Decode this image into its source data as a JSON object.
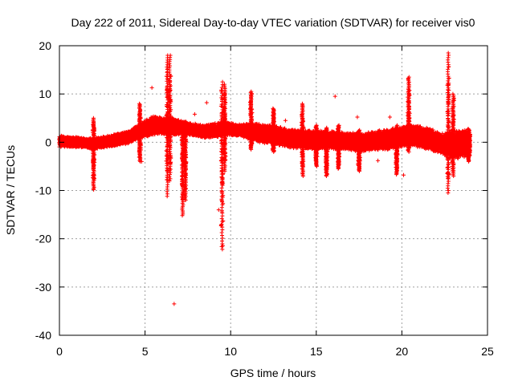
{
  "chart_data": {
    "type": "scatter",
    "title": "Day 222 of 2011, Sidereal Day-to-day VTEC variation (SDTVAR) for receiver vis0",
    "xlabel": "GPS time / hours",
    "ylabel": "SDTVAR / TECUs",
    "xlim": [
      0,
      25
    ],
    "ylim": [
      -40,
      20
    ],
    "xticks": [
      0,
      5,
      10,
      15,
      20,
      25
    ],
    "yticks": [
      -40,
      -30,
      -20,
      -10,
      0,
      10,
      20
    ],
    "grid": true,
    "marker": "+",
    "color": "#ff0000",
    "series": [
      {
        "name": "SDTVAR",
        "band_center": [
          [
            0,
            0.2
          ],
          [
            1,
            0.0
          ],
          [
            2,
            -0.3
          ],
          [
            3,
            0.3
          ],
          [
            4,
            1.0
          ],
          [
            4.8,
            2.5
          ],
          [
            5.5,
            3.5
          ],
          [
            6.5,
            3.3
          ],
          [
            7.5,
            2.8
          ],
          [
            8.5,
            2.2
          ],
          [
            9,
            2.5
          ],
          [
            9.8,
            2.8
          ],
          [
            10.5,
            2.5
          ],
          [
            11.5,
            2.0
          ],
          [
            12.5,
            1.5
          ],
          [
            13.5,
            0.8
          ],
          [
            14.5,
            0.5
          ],
          [
            15.5,
            0.5
          ],
          [
            16.5,
            0.3
          ],
          [
            17.5,
            0.0
          ],
          [
            18.5,
            0.3
          ],
          [
            19.5,
            0.8
          ],
          [
            20.5,
            1.5
          ],
          [
            21.5,
            0.8
          ],
          [
            22.5,
            -0.5
          ],
          [
            23.0,
            -0.5
          ],
          [
            24,
            -0.3
          ]
        ],
        "band_halfwidth": [
          [
            0,
            1.2
          ],
          [
            1.5,
            1.0
          ],
          [
            2,
            1.2
          ],
          [
            3,
            1.2
          ],
          [
            4.5,
            1.5
          ],
          [
            5.5,
            2.0
          ],
          [
            6.5,
            1.8
          ],
          [
            7.5,
            1.4
          ],
          [
            8.5,
            1.4
          ],
          [
            9.5,
            1.6
          ],
          [
            10.5,
            1.2
          ],
          [
            11.5,
            2.0
          ],
          [
            12.5,
            2.0
          ],
          [
            13.5,
            2.0
          ],
          [
            14.5,
            2.0
          ],
          [
            15.5,
            2.0
          ],
          [
            16.5,
            1.8
          ],
          [
            17.5,
            2.0
          ],
          [
            18.5,
            2.0
          ],
          [
            19.5,
            2.3
          ],
          [
            20.5,
            2.3
          ],
          [
            21.5,
            2.3
          ],
          [
            22.5,
            2.3
          ],
          [
            22.8,
            3.2
          ],
          [
            24,
            2.8
          ]
        ],
        "spikes": [
          {
            "x": 2.0,
            "min": -9.8,
            "max": 5.0
          },
          {
            "x": 4.7,
            "min": -4.0,
            "max": 8.0
          },
          {
            "x": 6.3,
            "min": -11.2,
            "max": 18.0
          },
          {
            "x": 6.45,
            "min": -8.0,
            "max": 18.0
          },
          {
            "x": 7.2,
            "min": -15.2,
            "max": 4.0
          },
          {
            "x": 7.35,
            "min": -12.0,
            "max": 3.5
          },
          {
            "x": 9.5,
            "min": -22.2,
            "max": 12.5
          },
          {
            "x": 9.65,
            "min": -6.0,
            "max": 12.0
          },
          {
            "x": 11.2,
            "min": -1.5,
            "max": 10.5
          },
          {
            "x": 12.5,
            "min": -2.0,
            "max": 7.0
          },
          {
            "x": 14.2,
            "min": -7.0,
            "max": 8.0
          },
          {
            "x": 15.0,
            "min": -5.0,
            "max": 3.5
          },
          {
            "x": 15.6,
            "min": -7.0,
            "max": 3.0
          },
          {
            "x": 16.3,
            "min": -5.5,
            "max": 3.5
          },
          {
            "x": 17.5,
            "min": -6.0,
            "max": 2.5
          },
          {
            "x": 19.7,
            "min": -6.7,
            "max": 3.5
          },
          {
            "x": 20.4,
            "min": -2.0,
            "max": 13.5
          },
          {
            "x": 22.7,
            "min": -10.5,
            "max": 18.5
          },
          {
            "x": 23.0,
            "min": -7.0,
            "max": 10.0
          },
          {
            "x": 23.9,
            "min": -4.0,
            "max": 2.8
          }
        ],
        "outliers": [
          [
            5.4,
            11.3
          ],
          [
            6.7,
            -33.5
          ],
          [
            7.9,
            5.8
          ],
          [
            16.1,
            9.5
          ],
          [
            17.4,
            5.2
          ],
          [
            19.3,
            5.2
          ],
          [
            2.0,
            -9.8
          ],
          [
            4.8,
            -4.0
          ],
          [
            20.1,
            -6.8
          ],
          [
            1.8,
            0.8
          ],
          [
            8.6,
            8.2
          ],
          [
            9.3,
            -14.0
          ],
          [
            13.2,
            4.5
          ],
          [
            18.6,
            -3.8
          ]
        ]
      }
    ]
  }
}
